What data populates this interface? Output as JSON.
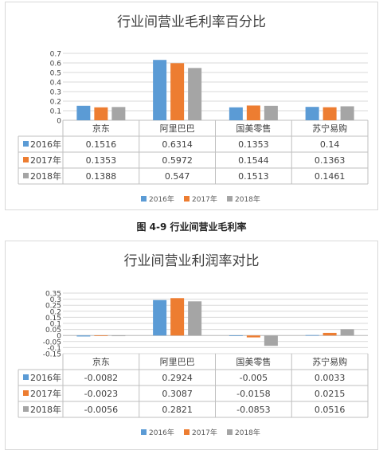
{
  "colors": {
    "2016": "#5b9bd5",
    "2017": "#ed7d31",
    "2018": "#a5a5a5"
  },
  "caption": "图 4-9 行业间营业毛利率",
  "chart_data": [
    {
      "type": "bar",
      "title": "行业间营业毛利率百分比",
      "categories": [
        "京东",
        "阿里巴巴",
        "国美零售",
        "苏宁易购"
      ],
      "series": [
        {
          "name": "2016年",
          "values": [
            "0.1516",
            "0.6314",
            "0.1353",
            "0.14"
          ]
        },
        {
          "name": "2017年",
          "values": [
            "0.1353",
            "0.5972",
            "0.1544",
            "0.1363"
          ]
        },
        {
          "name": "2018年",
          "values": [
            "0.1388",
            "0.547",
            "0.1513",
            "0.1461"
          ]
        }
      ],
      "yticks": [
        "0",
        "0.1",
        "0.2",
        "0.3",
        "0.4",
        "0.5",
        "0.6",
        "0.7"
      ],
      "ylim": [
        0,
        0.7
      ],
      "grid": true,
      "legend": "bottom",
      "data_table": true
    },
    {
      "type": "bar",
      "title": "行业间营业利润率对比",
      "categories": [
        "京东",
        "阿里巴巴",
        "国美零售",
        "苏宁易购"
      ],
      "series": [
        {
          "name": "2016年",
          "values": [
            "-0.0082",
            "0.2924",
            "-0.005",
            "0.0033"
          ]
        },
        {
          "name": "2017年",
          "values": [
            "-0.0023",
            "0.3087",
            "-0.0158",
            "0.0215"
          ]
        },
        {
          "name": "2018年",
          "values": [
            "-0.0056",
            "0.2821",
            "-0.0853",
            "0.0516"
          ]
        }
      ],
      "yticks": [
        "-0.15",
        "-0.1",
        "-0.05",
        "0",
        "0.05",
        "0.1",
        "0.15",
        "0.2",
        "0.25",
        "0.3",
        "0.35"
      ],
      "ylim": [
        -0.15,
        0.35
      ],
      "grid": true,
      "legend": "bottom",
      "data_table": true
    }
  ]
}
